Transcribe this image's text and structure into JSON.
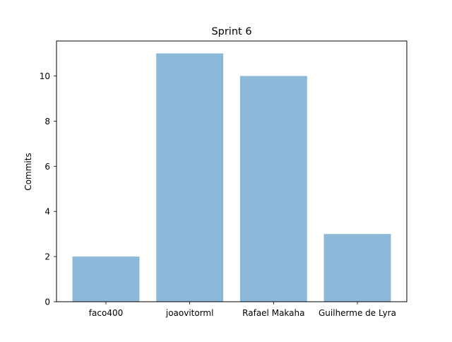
{
  "chart_data": {
    "type": "bar",
    "title": "Sprint 6",
    "xlabel": "",
    "ylabel": "Commits",
    "categories": [
      "faco400",
      "joaovitorml",
      "Rafael Makaha",
      "Guilherme de Lyra"
    ],
    "values": [
      2,
      11,
      10,
      3
    ],
    "ylim": [
      0,
      11.55
    ],
    "yticks": [
      0,
      2,
      4,
      6,
      8,
      10
    ],
    "bar_color": "#8cb8d9",
    "grid": false,
    "legend": "none"
  }
}
